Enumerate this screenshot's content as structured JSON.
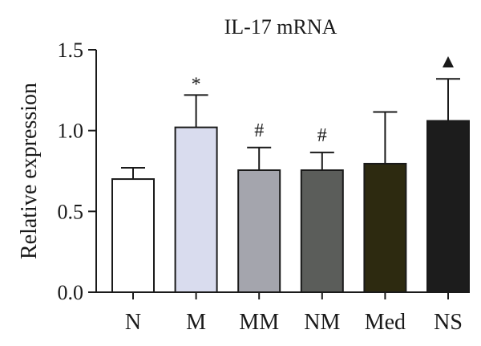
{
  "chart_data": {
    "type": "bar",
    "title": "IL-17 mRNA",
    "xlabel": "",
    "ylabel": "Relative expression",
    "ylim": [
      0,
      1.5
    ],
    "yticks": [
      "0.0",
      "0.5",
      "1.0",
      "1.5"
    ],
    "ytick_values": [
      0,
      0.5,
      1.0,
      1.5
    ],
    "categories": [
      "N",
      "M",
      "MM",
      "NM",
      "Med",
      "NS"
    ],
    "values": [
      0.7,
      1.02,
      0.755,
      0.755,
      0.795,
      1.06
    ],
    "error_upper": [
      0.77,
      1.22,
      0.895,
      0.865,
      1.115,
      1.32
    ],
    "annotations": [
      "",
      "*",
      "#",
      "#",
      "",
      "▲"
    ],
    "bar_colors": [
      "#ffffff",
      "#d9dcee",
      "#a4a5ad",
      "#5b5d5a",
      "#2d2a10",
      "#1c1c1c"
    ],
    "grid": false,
    "legend": "none"
  }
}
